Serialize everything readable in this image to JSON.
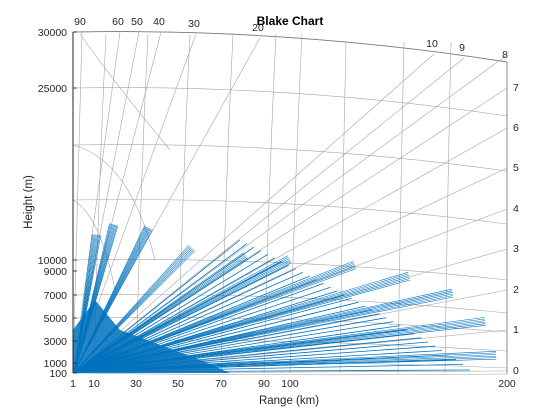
{
  "chart_data": {
    "type": "line",
    "title": "Blake Chart",
    "xlabel": "Range (km)",
    "ylabel": "Height (m)",
    "x_ticks": [
      "1",
      "10",
      "30",
      "50",
      "70",
      "90",
      "100",
      "200"
    ],
    "y_ticks": [
      "100",
      "1000",
      "3000",
      "5000",
      "7000",
      "9000",
      "10000",
      "25000",
      "30000"
    ],
    "elevation_angle_labels": [
      "90",
      "60",
      "50",
      "40",
      "30",
      "20",
      "10",
      "9",
      "8",
      "7",
      "6",
      "5",
      "4",
      "3",
      "2",
      "1",
      "0"
    ],
    "xlim": [
      0,
      200
    ],
    "ylim": [
      0,
      30000
    ],
    "grid": "on",
    "series": [
      {
        "values_note": "",
        "lobes": [
          {
            "elevation_deg": 60,
            "peak_range_km": 11,
            "peak_height_m": 12200
          },
          {
            "elevation_deg": 53,
            "peak_range_km": 19,
            "peak_height_m": 13100
          },
          {
            "elevation_deg": 45,
            "peak_range_km": 35,
            "peak_height_m": 12800
          },
          {
            "elevation_deg": 30,
            "peak_range_km": 55,
            "peak_height_m": 11000
          },
          {
            "elevation_deg": 20,
            "peak_range_km": 80,
            "peak_height_m": 10300
          },
          {
            "elevation_deg": 15,
            "peak_range_km": 100,
            "peak_height_m": 10000
          },
          {
            "elevation_deg": 10,
            "peak_range_km": 130,
            "peak_height_m": 9500
          },
          {
            "elevation_deg": 7,
            "peak_range_km": 155,
            "peak_height_m": 8500
          },
          {
            "elevation_deg": 5,
            "peak_range_km": 175,
            "peak_height_m": 7000
          },
          {
            "elevation_deg": 3,
            "peak_range_km": 190,
            "peak_height_m": 4500
          },
          {
            "elevation_deg": 1,
            "peak_range_km": 195,
            "peak_height_m": 1500
          }
        ]
      }
    ]
  }
}
